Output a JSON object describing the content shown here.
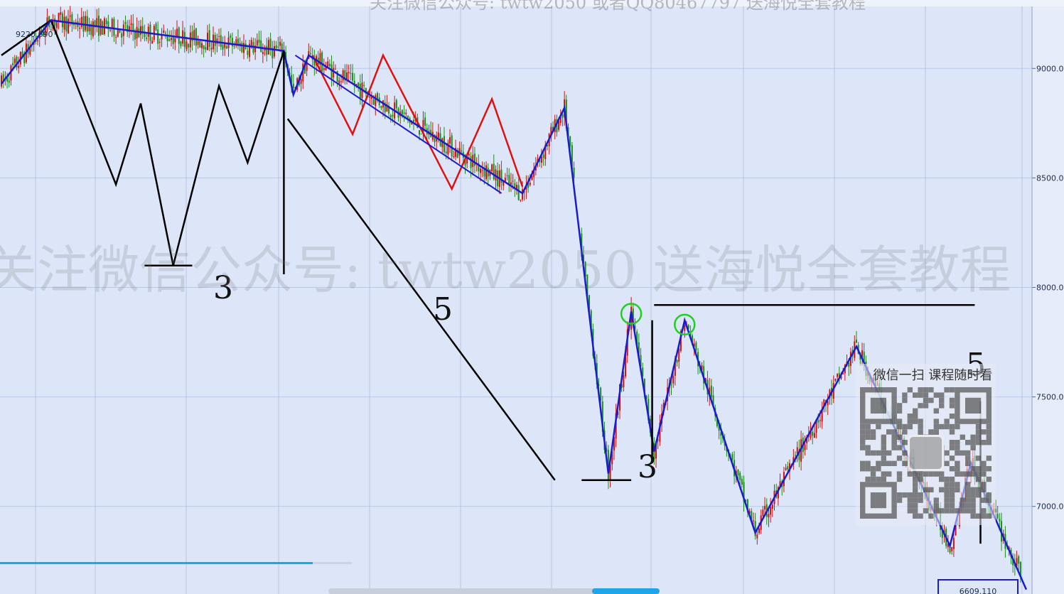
{
  "chart_data": {
    "type": "candlestick",
    "ylim": [
      6600,
      9280
    ],
    "y_ticks": [
      "9000.0",
      "8500.0",
      "8000.0",
      "7500.0",
      "7000.0"
    ],
    "max_label": "9220.690",
    "min_label": "6609.110",
    "grid": true,
    "colors": {
      "up": "#d01010",
      "down": "#178f17",
      "black": "#000000",
      "blue": "#1a1ad0",
      "red": "#e01010",
      "circle": "#1fd01f",
      "tick_text": "#1f2d4a",
      "max_text": "#c0143c"
    },
    "wave_black": [
      [
        0,
        9060
      ],
      [
        26,
        9220
      ],
      [
        60,
        8470
      ],
      [
        73,
        8840
      ],
      [
        90,
        8100
      ],
      [
        114,
        8920
      ],
      [
        129,
        8570
      ],
      [
        148,
        9080
      ]
    ],
    "wave_red": [
      [
        163,
        9060
      ],
      [
        184,
        8700
      ],
      [
        200,
        9060
      ],
      [
        236,
        8450
      ],
      [
        257,
        8860
      ],
      [
        273,
        8460
      ]
    ],
    "wave_blue": [
      [
        0,
        8930
      ],
      [
        26,
        9220
      ],
      [
        148,
        9080
      ],
      [
        153,
        8880
      ],
      [
        161,
        9060
      ],
      [
        273,
        8430
      ],
      [
        295,
        8820
      ],
      [
        318,
        7150
      ],
      [
        330,
        7890
      ],
      [
        342,
        7250
      ],
      [
        358,
        7850
      ],
      [
        395,
        6880
      ],
      [
        448,
        7730
      ],
      [
        497,
        6820
      ],
      [
        508,
        7200
      ],
      [
        537,
        6620
      ]
    ],
    "circle_points": [
      [
        330,
        7880
      ],
      [
        358,
        7830
      ]
    ],
    "annotations": [
      "3",
      "5",
      "3",
      "5"
    ]
  },
  "watermark": {
    "main": "关注微信公众号:  twtw2050 送海悦全套教程",
    "top": "关注微信公众号:  twtw2050 或者QQ80467797 送海悦全套教程"
  },
  "qr": {
    "caption": "微信一扫 课程随时看"
  }
}
